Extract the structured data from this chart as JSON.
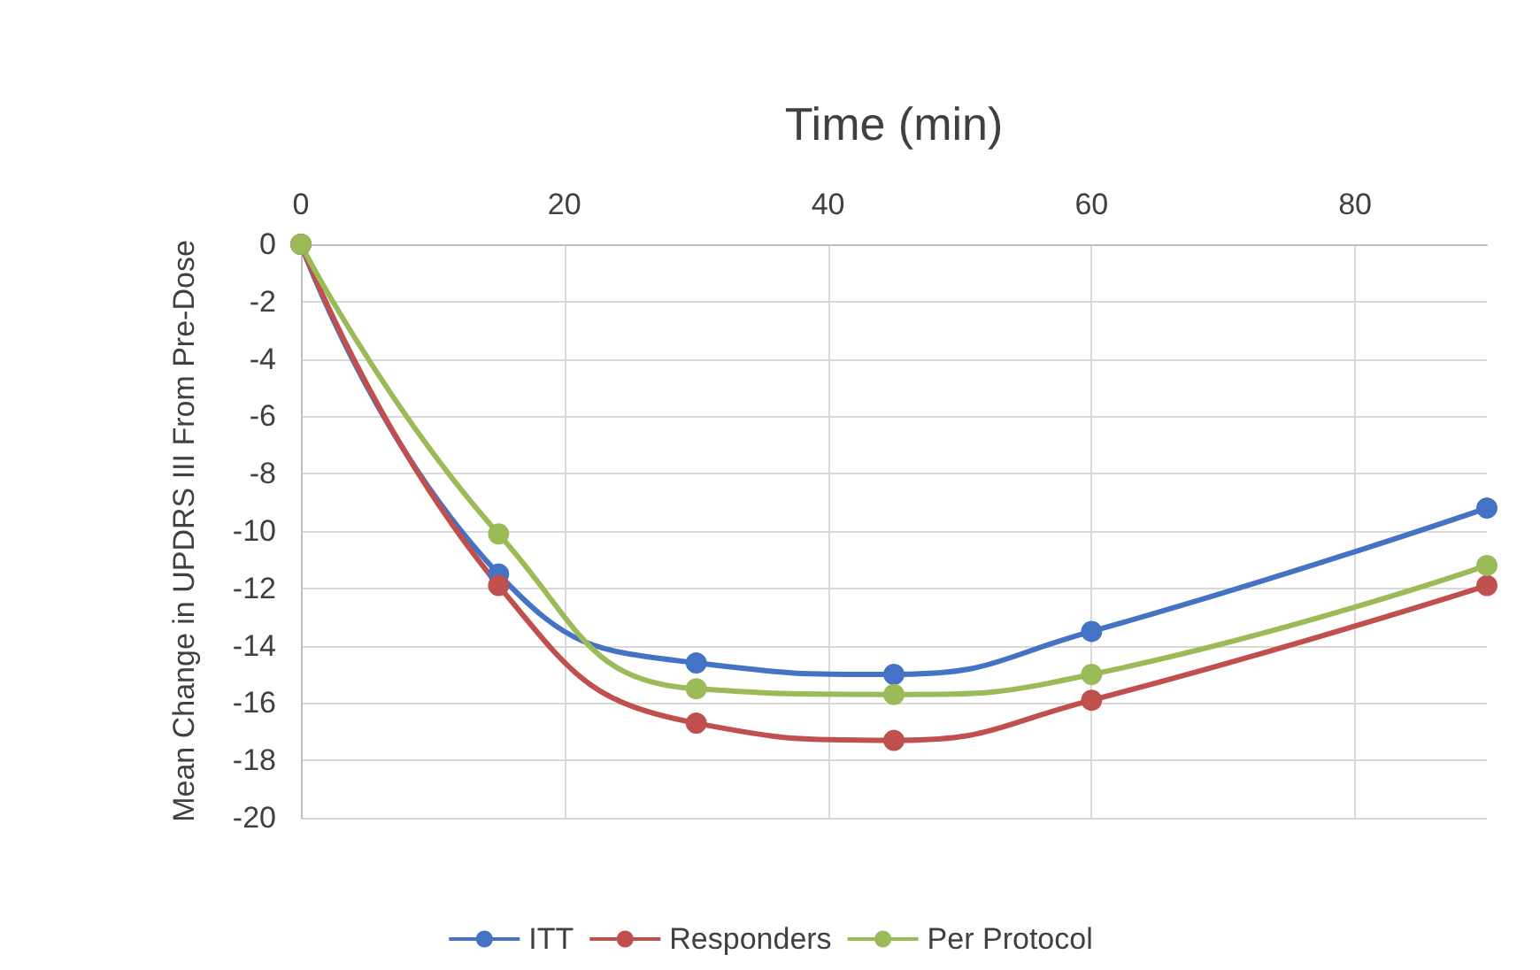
{
  "chart_data": {
    "type": "line",
    "xlabel": "Time (min)",
    "ylabel": "Mean Change in UPDRS III From Pre-Dose",
    "x": [
      0,
      15,
      30,
      45,
      60,
      90
    ],
    "series": [
      {
        "name": "ITT",
        "color": "#4472c4",
        "values": [
          0,
          -11.5,
          -14.6,
          -15.0,
          -13.5,
          -9.2
        ]
      },
      {
        "name": "Responders",
        "color": "#c0504d",
        "values": [
          0,
          -11.9,
          -16.7,
          -17.3,
          -15.9,
          -11.9
        ]
      },
      {
        "name": "Per Protocol",
        "color": "#9bbb59",
        "values": [
          0,
          -10.1,
          -15.5,
          -15.7,
          -15.0,
          -11.2
        ]
      }
    ],
    "xlim": [
      0,
      90
    ],
    "xticks": [
      0,
      20,
      40,
      60,
      80
    ],
    "ylim": [
      -20,
      0
    ],
    "yticks": [
      -20,
      -18,
      -16,
      -14,
      -12,
      -10,
      -8,
      -6,
      -4,
      -2,
      0
    ],
    "grid": true,
    "legend": "bottom",
    "marker": "circle",
    "line_style": "solid"
  }
}
